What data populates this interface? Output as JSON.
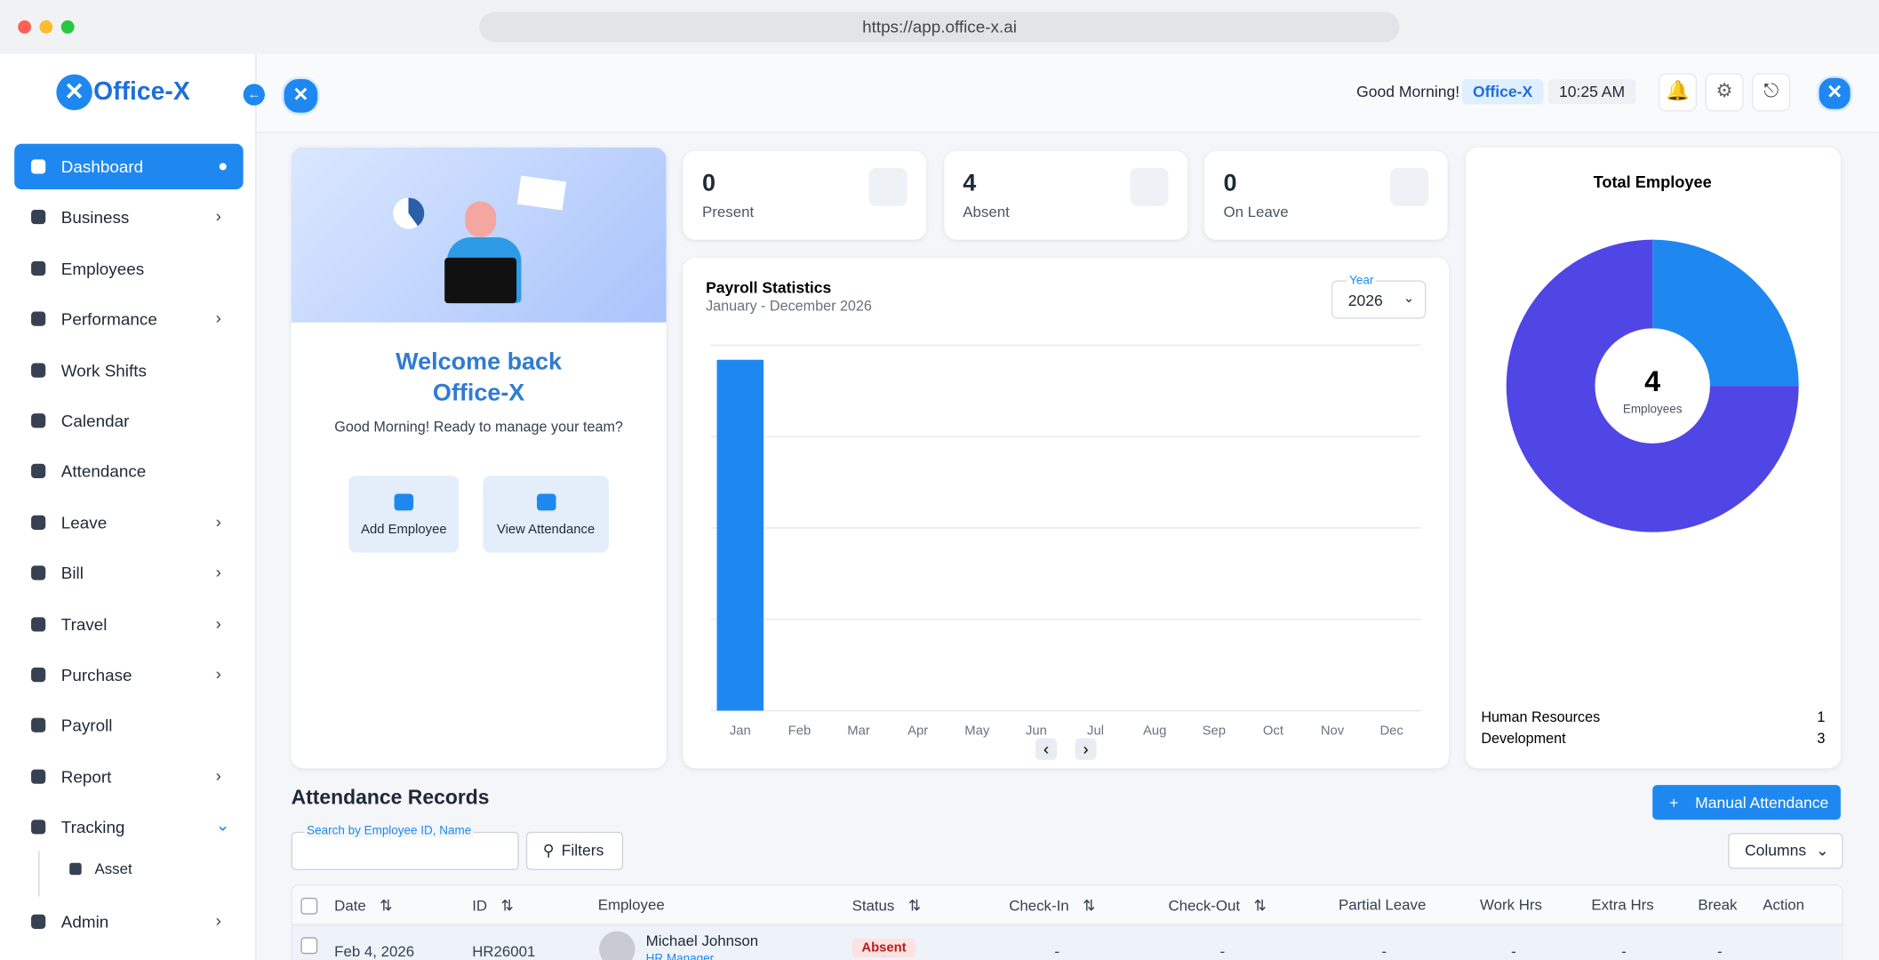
{
  "browser": {
    "url": "https://app.office-x.ai"
  },
  "sidebar": {
    "brand": "Office-X",
    "items": [
      {
        "label": "Dashboard",
        "active": true,
        "expandable": false
      },
      {
        "label": "Business",
        "expandable": true
      },
      {
        "label": "Employees",
        "expandable": false
      },
      {
        "label": "Performance",
        "expandable": true
      },
      {
        "label": "Work Shifts",
        "expandable": false
      },
      {
        "label": "Calendar",
        "expandable": false
      },
      {
        "label": "Attendance",
        "expandable": false
      },
      {
        "label": "Leave",
        "expandable": true
      },
      {
        "label": "Bill",
        "expandable": true
      },
      {
        "label": "Travel",
        "expandable": true
      },
      {
        "label": "Purchase",
        "expandable": true
      },
      {
        "label": "Payroll",
        "expandable": false
      },
      {
        "label": "Report",
        "expandable": true
      },
      {
        "label": "Tracking",
        "expandable": true,
        "expanded": true,
        "children": [
          "Asset"
        ]
      },
      {
        "label": "Admin",
        "expandable": true
      }
    ]
  },
  "header": {
    "greeting": "Good Morning!",
    "org": "Office-X",
    "time": "10:25 AM"
  },
  "welcome": {
    "title_line1": "Welcome back",
    "title_line2": "Office-X",
    "subtitle": "Good Morning! Ready to manage your team?",
    "actions": [
      "Add Employee",
      "View Attendance"
    ]
  },
  "stats": [
    {
      "value": 0,
      "label": "Present"
    },
    {
      "value": 4,
      "label": "Absent"
    },
    {
      "value": 0,
      "label": "On Leave"
    }
  ],
  "payroll_filter": {
    "label": "Year",
    "value": "2026"
  },
  "chart_data": [
    {
      "type": "bar",
      "title": "Payroll Statistics",
      "subtitle": "January - December 2026",
      "categories": [
        "Jan",
        "Feb",
        "Mar",
        "Apr",
        "May",
        "Jun",
        "Jul",
        "Aug",
        "Sep",
        "Oct",
        "Nov",
        "Dec"
      ],
      "values": [
        3.84,
        0,
        0,
        0,
        0,
        0,
        0,
        0,
        0,
        0,
        0,
        0
      ],
      "color": "#1e88f0",
      "ylim": [
        0,
        4
      ],
      "yticks": [
        0,
        1,
        2,
        3,
        4
      ],
      "grid": true
    },
    {
      "type": "pie",
      "title": "Total Employee",
      "center_value": 4,
      "center_label": "Employees",
      "categories": [
        "Human Resources",
        "Development"
      ],
      "values": [
        1,
        3
      ],
      "colors": [
        "#1e88f0",
        "#4f46e5"
      ]
    }
  ],
  "attendance": {
    "title": "Attendance Records",
    "button": "Manual Attendance",
    "search_label": "Search by Employee ID, Name",
    "filters": "Filters",
    "columns_button": "Columns",
    "columns": [
      {
        "label": "Date",
        "sortable": true
      },
      {
        "label": "ID",
        "sortable": true
      },
      {
        "label": "Employee",
        "sortable": false
      },
      {
        "label": "Status",
        "sortable": true
      },
      {
        "label": "Check-In",
        "sortable": true
      },
      {
        "label": "Check-Out",
        "sortable": true
      },
      {
        "label": "Partial Leave",
        "sortable": false
      },
      {
        "label": "Work Hrs",
        "sortable": false
      },
      {
        "label": "Extra Hrs",
        "sortable": false
      },
      {
        "label": "Break",
        "sortable": false
      },
      {
        "label": "Action",
        "sortable": false
      }
    ],
    "rows": [
      {
        "date": "Feb 4, 2026",
        "id": "HR26001",
        "employee": "Michael Johnson",
        "role": "HR Manager",
        "status": "Absent",
        "check_in": "-",
        "check_out": "-",
        "partial_leave": "-",
        "work_hrs": "-",
        "extra_hrs": "-",
        "break": "-"
      }
    ]
  }
}
